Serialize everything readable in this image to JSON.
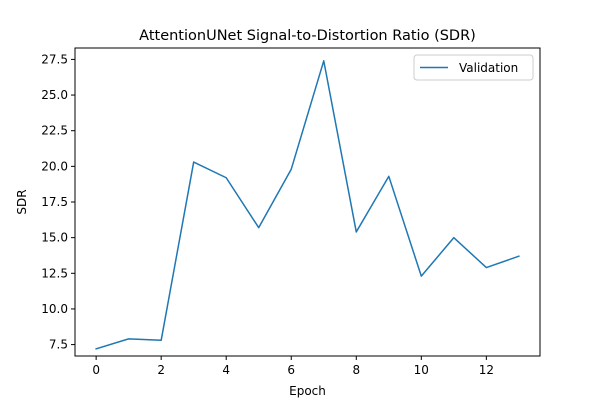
{
  "chart_data": {
    "type": "line",
    "title": "AttentionUNet Signal-to-Distortion Ratio (SDR)",
    "xlabel": "Epoch",
    "ylabel": "SDR",
    "xlim": [
      -0.65,
      13.65
    ],
    "ylim": [
      6.7,
      28.3
    ],
    "xticks": [
      0,
      2,
      4,
      6,
      8,
      10,
      12
    ],
    "xtick_labels": [
      "0",
      "2",
      "4",
      "6",
      "8",
      "10",
      "12"
    ],
    "yticks": [
      7.5,
      10.0,
      12.5,
      15.0,
      17.5,
      20.0,
      22.5,
      25.0,
      27.5
    ],
    "ytick_labels": [
      "7.5",
      "10.0",
      "12.5",
      "15.0",
      "17.5",
      "20.0",
      "22.5",
      "25.0",
      "27.5"
    ],
    "grid": false,
    "legend_position": "top-right",
    "series": [
      {
        "name": "Validation",
        "color": "#1f77b4",
        "x": [
          0,
          1,
          2,
          3,
          4,
          5,
          6,
          7,
          8,
          9,
          10,
          11,
          12,
          13
        ],
        "y": [
          7.2,
          7.9,
          7.8,
          20.3,
          19.2,
          15.7,
          19.8,
          27.4,
          15.4,
          19.3,
          12.3,
          15.0,
          12.9,
          13.7
        ]
      }
    ]
  }
}
